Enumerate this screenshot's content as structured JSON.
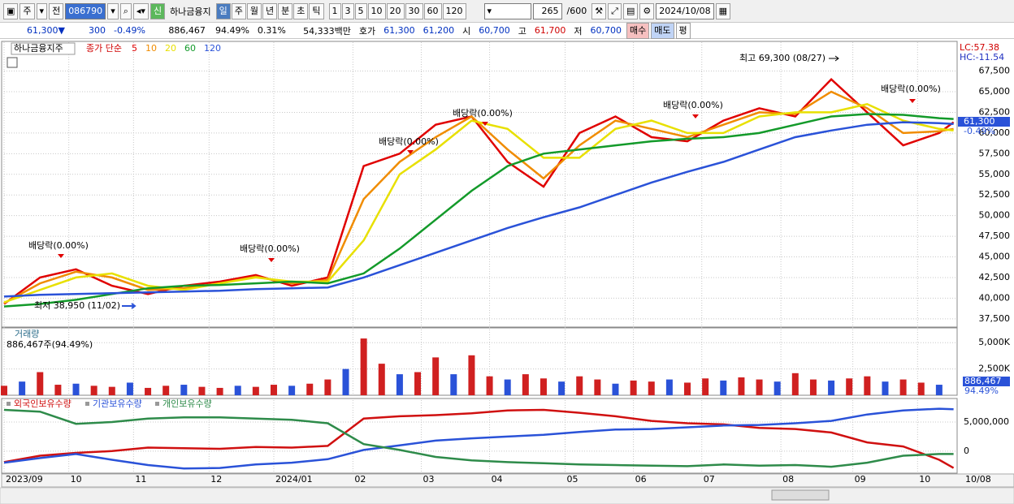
{
  "toolbar": {
    "market": "주",
    "prev": "전",
    "code": "086790",
    "badge": "신",
    "name": "하나금융지",
    "periods": [
      "일",
      "주",
      "월",
      "년",
      "분",
      "초",
      "틱"
    ],
    "ticks": [
      "1",
      "3",
      "5",
      "10",
      "20",
      "30",
      "60",
      "120"
    ],
    "count": "265",
    "max": "/600",
    "date": "2024/10/08"
  },
  "quote": {
    "price": "61,300▼",
    "change": "300",
    "rate": "-0.49%",
    "volume": "886,467",
    "vol_rate": "94.49%",
    "turnover": "0.31%",
    "amount": "54,333백만",
    "ask_label": "호가",
    "ask": "61,300",
    "bid": "61,200",
    "open_label": "시",
    "open": "60,700",
    "high_label": "고",
    "high": "61,700",
    "low_label": "저",
    "low": "60,700",
    "buy": "매수",
    "sell": "매도",
    "avg": "평"
  },
  "chart_data": [
    {
      "type": "line",
      "title": "하나금융지주",
      "legend_prefix": "종가 단순",
      "lc": "LC:57.38",
      "hc": "HC:-11.54",
      "price_tag": "61,300",
      "rate_tag": "-0.49%",
      "annotations": [
        "배당락(0.00%)",
        "배당락(0.00%)",
        "배당락(0.00%)",
        "배당락(0.00%)",
        "배당락(0.00%)",
        "배당락(0.00%)",
        "최고 69,300 (08/27)",
        "최저 38,950 (11/02)"
      ],
      "x": [
        0,
        10,
        20,
        30,
        40,
        50,
        60,
        70,
        80,
        90,
        100,
        110,
        120,
        130,
        140,
        150,
        160,
        170,
        180,
        190,
        200,
        210,
        220,
        230,
        240,
        250,
        260,
        264
      ],
      "xlim": [
        0,
        265
      ],
      "ylim": [
        36500,
        70700
      ],
      "yticks": [
        {
          "value": 67500,
          "label": "67,500"
        },
        {
          "value": 65000,
          "label": "65,000"
        },
        {
          "value": 62500,
          "label": "62,500"
        },
        {
          "value": 60000,
          "label": "60,000"
        },
        {
          "value": 57500,
          "label": "57,500"
        },
        {
          "value": 55000,
          "label": "55,000"
        },
        {
          "value": 52500,
          "label": "52,500"
        },
        {
          "value": 50000,
          "label": "50,000"
        },
        {
          "value": 47500,
          "label": "47,500"
        },
        {
          "value": 45000,
          "label": "45,000"
        },
        {
          "value": 42500,
          "label": "42,500"
        },
        {
          "value": 40000,
          "label": "40,000"
        },
        {
          "value": 37500,
          "label": "37,500"
        }
      ],
      "series": [
        {
          "name": "5",
          "color": "#e00000",
          "values": [
            39300,
            42500,
            43500,
            41500,
            40500,
            41500,
            42000,
            42800,
            41500,
            42500,
            56000,
            57500,
            61000,
            62000,
            56500,
            53500,
            60000,
            62000,
            59500,
            59000,
            61500,
            63000,
            62000,
            66500,
            62500,
            58500,
            60000,
            61300
          ]
        },
        {
          "name": "10",
          "color": "#f08c00",
          "values": [
            39400,
            41800,
            43200,
            42500,
            41000,
            41200,
            41800,
            42600,
            41800,
            42200,
            52000,
            56500,
            59500,
            62000,
            58000,
            54500,
            58500,
            61500,
            60500,
            59500,
            61000,
            62500,
            62300,
            65000,
            63000,
            60000,
            60200,
            60500
          ]
        },
        {
          "name": "20",
          "color": "#e8e000",
          "values": [
            39500,
            41000,
            42500,
            43000,
            41500,
            41000,
            41800,
            42500,
            42000,
            42000,
            47000,
            55000,
            58000,
            61500,
            60500,
            57000,
            57000,
            60500,
            61500,
            60000,
            60000,
            62000,
            62500,
            62500,
            63500,
            61500,
            60500,
            60300
          ]
        },
        {
          "name": "60",
          "color": "#139a2a",
          "values": [
            39000,
            39300,
            39800,
            40500,
            41200,
            41500,
            41600,
            41800,
            42000,
            41800,
            43000,
            46000,
            49500,
            53000,
            56000,
            57500,
            58000,
            58500,
            59000,
            59300,
            59500,
            60000,
            61000,
            62000,
            62300,
            62200,
            61800,
            61700
          ]
        },
        {
          "name": "120",
          "color": "#2a52d8",
          "values": [
            40200,
            40400,
            40500,
            40600,
            40700,
            40800,
            40900,
            41100,
            41200,
            41300,
            42500,
            44000,
            45500,
            47000,
            48500,
            49800,
            51000,
            52500,
            54000,
            55300,
            56500,
            58000,
            59500,
            60300,
            61000,
            61300,
            61200,
            61100
          ]
        }
      ]
    },
    {
      "type": "bar",
      "title": "거래량",
      "subtitle": "886,467주(94.49%)",
      "tag": "886,467",
      "tag2": "94.49%",
      "x": [
        0,
        5,
        10,
        15,
        20,
        25,
        30,
        35,
        40,
        45,
        50,
        55,
        60,
        65,
        70,
        75,
        80,
        85,
        90,
        95,
        100,
        105,
        110,
        115,
        120,
        125,
        130,
        135,
        140,
        145,
        150,
        155,
        160,
        165,
        170,
        175,
        180,
        185,
        190,
        195,
        200,
        205,
        210,
        215,
        220,
        225,
        230,
        235,
        240,
        245,
        250,
        255,
        260
      ],
      "xlim": [
        0,
        265
      ],
      "ylim": [
        0,
        6100
      ],
      "yticks": [
        {
          "value": 5000,
          "label": "5,000K"
        },
        {
          "value": 2500,
          "label": "2,500K"
        }
      ],
      "color": "#d02020",
      "values": [
        900,
        1300,
        2200,
        1000,
        1100,
        900,
        800,
        1200,
        700,
        900,
        1000,
        800,
        700,
        900,
        800,
        1000,
        900,
        1100,
        1500,
        2500,
        5400,
        3000,
        2000,
        2200,
        3600,
        2000,
        3800,
        1800,
        1500,
        2000,
        1600,
        1300,
        1800,
        1500,
        1100,
        1400,
        1300,
        1500,
        1200,
        1600,
        1400,
        1700,
        1500,
        1300,
        2100,
        1500,
        1400,
        1600,
        1800,
        1300,
        1500,
        1200,
        1000
      ]
    },
    {
      "type": "line",
      "end_label": "10/08",
      "x": [
        0,
        10,
        20,
        30,
        40,
        50,
        60,
        70,
        80,
        90,
        100,
        110,
        120,
        130,
        140,
        150,
        160,
        170,
        180,
        190,
        200,
        210,
        220,
        230,
        240,
        250,
        260,
        264
      ],
      "xlim": [
        0,
        265
      ],
      "ylim": [
        -3800000,
        8500000
      ],
      "xticks": [
        {
          "value": 0,
          "label": "2023/09"
        },
        {
          "value": 18,
          "label": "10"
        },
        {
          "value": 36,
          "label": "11"
        },
        {
          "value": 57,
          "label": "12"
        },
        {
          "value": 75,
          "label": "2024/01"
        },
        {
          "value": 97,
          "label": "02"
        },
        {
          "value": 116,
          "label": "03"
        },
        {
          "value": 135,
          "label": "04"
        },
        {
          "value": 156,
          "label": "05"
        },
        {
          "value": 175,
          "label": "06"
        },
        {
          "value": 194,
          "label": "07"
        },
        {
          "value": 216,
          "label": "08"
        },
        {
          "value": 236,
          "label": "09"
        },
        {
          "value": 254,
          "label": "10"
        }
      ],
      "yticks": [
        {
          "value": 5000000,
          "label": "5,000,000"
        },
        0
      ],
      "series": [
        {
          "name": "외국인보유수량",
          "color": "#d01010",
          "values": [
            -1900000,
            -800000,
            -300000,
            0,
            600000,
            500000,
            400000,
            700000,
            600000,
            900000,
            5600000,
            6000000,
            6200000,
            6500000,
            7000000,
            7100000,
            6600000,
            6000000,
            5200000,
            4800000,
            4600000,
            4000000,
            3800000,
            3200000,
            1500000,
            800000,
            -1500000,
            -2900000
          ]
        },
        {
          "name": "기관보유수량",
          "color": "#2a52d8",
          "values": [
            -2000000,
            -1200000,
            -500000,
            -1500000,
            -2400000,
            -3000000,
            -2900000,
            -2300000,
            -2000000,
            -1400000,
            200000,
            1000000,
            1800000,
            2200000,
            2500000,
            2800000,
            3300000,
            3700000,
            3800000,
            4100000,
            4400000,
            4500000,
            4800000,
            5200000,
            6300000,
            7000000,
            7300000,
            7200000
          ]
        },
        {
          "name": "개인보유수량",
          "color": "#2e8b4a",
          "values": [
            7100000,
            6800000,
            4700000,
            5000000,
            5600000,
            5800000,
            5800000,
            5600000,
            5400000,
            4800000,
            1200000,
            200000,
            -1000000,
            -1600000,
            -1900000,
            -2100000,
            -2300000,
            -2400000,
            -2500000,
            -2600000,
            -2300000,
            -2500000,
            -2400000,
            -2700000,
            -2000000,
            -800000,
            -500000,
            -500000
          ]
        }
      ]
    }
  ]
}
